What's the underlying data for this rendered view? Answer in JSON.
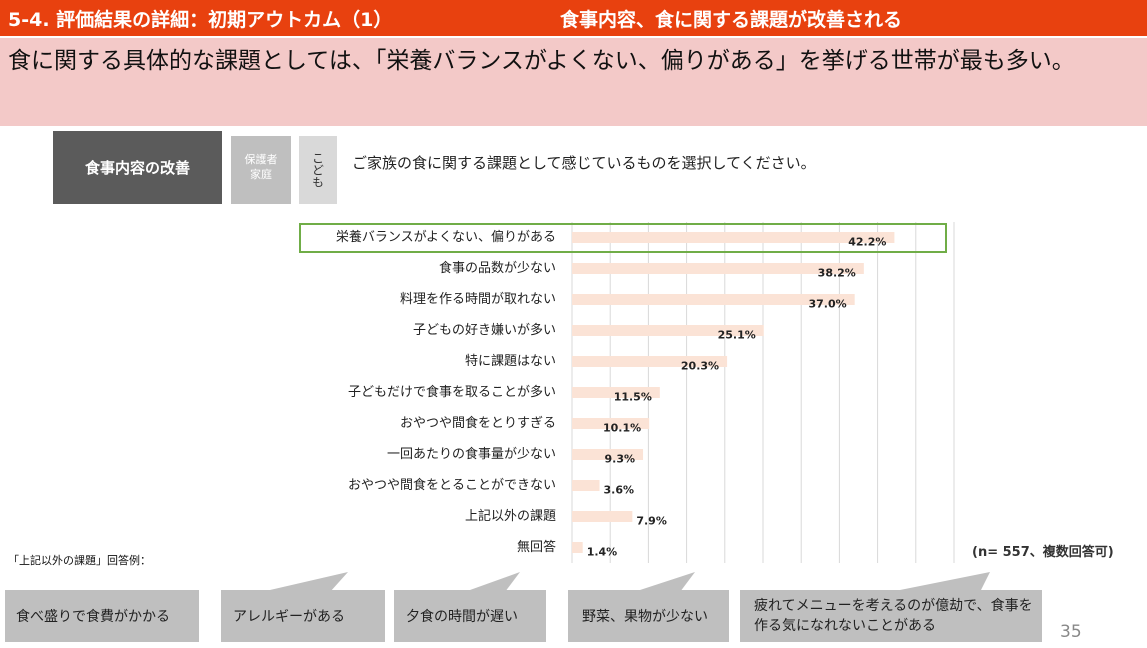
{
  "header": {
    "title": "5-4. 評価結果の詳細：初期アウトカム（1）",
    "subtitle": "食事内容、食に関する課題が改善される"
  },
  "lead": "食に関する具体的な課題としては、「栄養バランスがよくない、偏りがある」を挙げる世帯が最も多い。",
  "tags": {
    "main": "食事内容の改善",
    "guardian_line1": "保護者",
    "guardian_line2": "家庭",
    "child": "こども"
  },
  "question": "ご家族の食に関する課題として感じているものを選択してください。",
  "chart_data": {
    "type": "bar",
    "orientation": "horizontal",
    "categories": [
      "栄養バランスがよくない、偏りがある",
      "食事の品数が少ない",
      "料理を作る時間が取れない",
      "子どもの好き嫌いが多い",
      "特に課題はない",
      "子どもだけで食事を取ることが多い",
      "おやつや間食をとりすぎる",
      "一回あたりの食事量が少ない",
      "おやつや間食をとることができない",
      "上記以外の課題",
      "無回答"
    ],
    "values": [
      42.2,
      38.2,
      37.0,
      25.1,
      20.3,
      11.5,
      10.1,
      9.3,
      3.6,
      7.9,
      1.4
    ],
    "value_labels": [
      "42.2%",
      "38.2%",
      "37.0%",
      "25.1%",
      "20.3%",
      "11.5%",
      "10.1%",
      "9.3%",
      "3.6%",
      "7.9%",
      "1.4%"
    ],
    "xlim": [
      0,
      50
    ],
    "grid": true,
    "highlight_index": 0,
    "bar_color": "#fbe3d6",
    "highlight_color": "#70ad47"
  },
  "n_note": "(n= 557、複数回答可)",
  "other_heading": "「上記以外の課題」回答例：",
  "examples": [
    "食べ盛りで食費がかかる",
    "アレルギーがある",
    "夕食の時間が遅い",
    "野菜、果物が少ない",
    "疲れてメニューを考えるのが億劫で、食事を作る気になれないことがある"
  ],
  "page_number": "35",
  "colors": {
    "title_bar": "#e8410f",
    "lead_box": "#f3c9c8",
    "tag_main": "#5b5b5b",
    "bubble": "#bfbfbf"
  }
}
